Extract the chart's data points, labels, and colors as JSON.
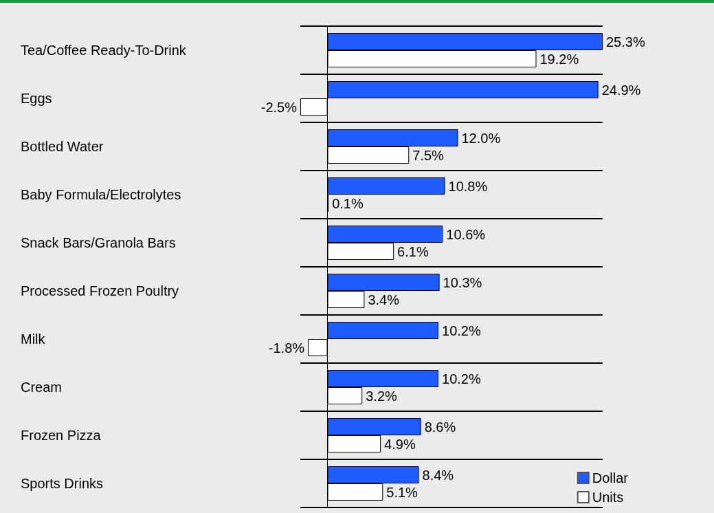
{
  "chart_data": {
    "type": "bar",
    "orientation": "horizontal",
    "categories": [
      "Tea/Coffee Ready-To-Drink",
      "Eggs",
      "Bottled Water",
      "Baby Formula/Electrolytes",
      "Snack Bars/Granola Bars",
      "Processed Frozen Poultry",
      "Milk",
      "Cream",
      "Frozen Pizza",
      "Sports Drinks"
    ],
    "series": [
      {
        "name": "Dollar",
        "color": "#1f5cff",
        "values": [
          25.3,
          24.9,
          12.0,
          10.8,
          10.6,
          10.3,
          10.2,
          10.2,
          8.6,
          8.4
        ],
        "value_labels": [
          "25.3%",
          "24.9%",
          "12.0%",
          "10.8%",
          "10.6%",
          "10.3%",
          "10.2%",
          "10.2%",
          "8.6%",
          "8.4%"
        ]
      },
      {
        "name": "Units",
        "color": "#ffffff",
        "values": [
          19.2,
          -2.5,
          7.5,
          0.1,
          6.1,
          3.4,
          -1.8,
          3.2,
          4.9,
          5.1
        ],
        "value_labels": [
          "19.2%",
          "-2.5%",
          "7.5%",
          "0.1%",
          "6.1%",
          "3.4%",
          "-1.8%",
          "3.2%",
          "4.9%",
          "5.1%"
        ]
      }
    ],
    "grid": "y",
    "legend": "bottom right"
  }
}
